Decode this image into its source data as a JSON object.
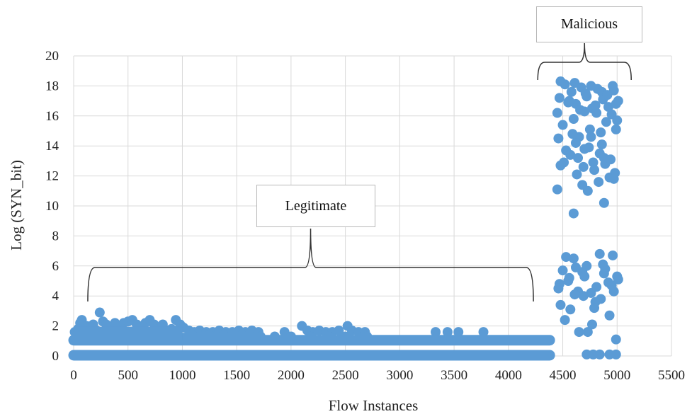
{
  "chart_data": {
    "type": "scatter",
    "title": "",
    "xlabel": "Flow Instances",
    "ylabel": "Log (SYN_bit)",
    "xlim": [
      0,
      5500
    ],
    "ylim": [
      0,
      20
    ],
    "x_ticks": [
      0,
      500,
      1000,
      1500,
      2000,
      2500,
      3000,
      3500,
      4000,
      4500,
      5000,
      5500
    ],
    "y_ticks": [
      0,
      2,
      4,
      6,
      8,
      10,
      12,
      14,
      16,
      18,
      20
    ],
    "grid": true,
    "marker_color": "#5b9bd5",
    "annotations": [
      {
        "label": "Legitimate",
        "x_range": [
          130,
          4230
        ]
      },
      {
        "label": "Malicious",
        "x_range": [
          4270,
          5130
        ]
      }
    ],
    "series": [
      {
        "points": [
          [
            10,
            1.6
          ],
          [
            40,
            1.8
          ],
          [
            60,
            2.2
          ],
          [
            75,
            2.4
          ],
          [
            90,
            1.6
          ],
          [
            120,
            2.0
          ],
          [
            150,
            1.7
          ],
          [
            180,
            2.1
          ],
          [
            210,
            1.7
          ],
          [
            240,
            2.9
          ],
          [
            270,
            2.3
          ],
          [
            300,
            2.1
          ],
          [
            340,
            1.8
          ],
          [
            380,
            2.2
          ],
          [
            420,
            1.9
          ],
          [
            460,
            2.2
          ],
          [
            500,
            2.3
          ],
          [
            540,
            2.4
          ],
          [
            580,
            2.1
          ],
          [
            620,
            1.9
          ],
          [
            660,
            2.2
          ],
          [
            700,
            2.4
          ],
          [
            740,
            2.1
          ],
          [
            780,
            1.8
          ],
          [
            820,
            2.1
          ],
          [
            860,
            1.7
          ],
          [
            900,
            1.8
          ],
          [
            940,
            2.4
          ],
          [
            980,
            2.1
          ],
          [
            1010,
            1.9
          ],
          [
            1060,
            1.7
          ],
          [
            1110,
            1.6
          ],
          [
            1160,
            1.7
          ],
          [
            1220,
            1.6
          ],
          [
            1280,
            1.6
          ],
          [
            1340,
            1.7
          ],
          [
            1400,
            1.6
          ],
          [
            1460,
            1.6
          ],
          [
            1520,
            1.7
          ],
          [
            1580,
            1.6
          ],
          [
            1640,
            1.7
          ],
          [
            1700,
            1.6
          ],
          [
            1940,
            1.6
          ],
          [
            2100,
            2.0
          ],
          [
            2150,
            1.7
          ],
          [
            2200,
            1.6
          ],
          [
            2260,
            1.7
          ],
          [
            2320,
            1.6
          ],
          [
            2380,
            1.6
          ],
          [
            2440,
            1.7
          ],
          [
            2520,
            2.0
          ],
          [
            2560,
            1.7
          ],
          [
            2620,
            1.6
          ],
          [
            2680,
            1.6
          ],
          [
            3330,
            1.6
          ],
          [
            3440,
            1.6
          ],
          [
            3540,
            1.6
          ],
          [
            3770,
            1.6
          ],
          [
            30,
            1.4
          ],
          [
            110,
            1.5
          ],
          [
            200,
            1.4
          ],
          [
            320,
            1.5
          ],
          [
            450,
            1.4
          ],
          [
            560,
            1.5
          ],
          [
            690,
            1.4
          ],
          [
            810,
            1.5
          ],
          [
            960,
            1.4
          ],
          [
            1090,
            1.4
          ],
          [
            1250,
            1.4
          ],
          [
            1380,
            1.4
          ],
          [
            1550,
            1.4
          ],
          [
            1720,
            1.3
          ],
          [
            1850,
            1.3
          ],
          [
            2000,
            1.3
          ],
          [
            2180,
            1.3
          ],
          [
            2350,
            1.3
          ],
          [
            2500,
            1.3
          ],
          [
            2700,
            1.3
          ],
          [
            4470,
            17.2
          ],
          [
            4520,
            18.1
          ],
          [
            4580,
            17.6
          ],
          [
            4620,
            16.8
          ],
          [
            4670,
            17.9
          ],
          [
            4720,
            17.3
          ],
          [
            4770,
            16.5
          ],
          [
            4820,
            17.8
          ],
          [
            4870,
            17.1
          ],
          [
            4920,
            16.6
          ],
          [
            4970,
            17.7
          ],
          [
            5010,
            17.0
          ],
          [
            4450,
            16.2
          ],
          [
            4500,
            15.4
          ],
          [
            4550,
            16.9
          ],
          [
            4600,
            15.8
          ],
          [
            4650,
            14.6
          ],
          [
            4700,
            16.3
          ],
          [
            4750,
            15.1
          ],
          [
            4800,
            16.7
          ],
          [
            4850,
            14.9
          ],
          [
            4900,
            15.6
          ],
          [
            4950,
            16.1
          ],
          [
            5000,
            15.7
          ],
          [
            4460,
            14.5
          ],
          [
            4530,
            13.7
          ],
          [
            4590,
            14.8
          ],
          [
            4640,
            13.2
          ],
          [
            4690,
            12.6
          ],
          [
            4740,
            13.9
          ],
          [
            4790,
            12.4
          ],
          [
            4840,
            13.5
          ],
          [
            4890,
            12.8
          ],
          [
            4940,
            13.1
          ],
          [
            4980,
            12.2
          ],
          [
            4480,
            18.3
          ],
          [
            4560,
            17.0
          ],
          [
            4610,
            18.2
          ],
          [
            4660,
            16.4
          ],
          [
            4710,
            17.5
          ],
          [
            4760,
            18.0
          ],
          [
            4810,
            16.2
          ],
          [
            4860,
            17.6
          ],
          [
            4910,
            17.4
          ],
          [
            4960,
            18.0
          ],
          [
            4990,
            16.8
          ],
          [
            4510,
            12.9
          ],
          [
            4570,
            13.4
          ],
          [
            4630,
            12.1
          ],
          [
            4680,
            11.4
          ],
          [
            4730,
            11.0
          ],
          [
            4780,
            12.9
          ],
          [
            4830,
            11.6
          ],
          [
            4880,
            13.2
          ],
          [
            4930,
            11.9
          ],
          [
            4970,
            11.8
          ],
          [
            4620,
            14.2
          ],
          [
            4700,
            13.8
          ],
          [
            4860,
            14.1
          ],
          [
            4760,
            14.6
          ],
          [
            4450,
            11.1
          ],
          [
            4480,
            12.7
          ],
          [
            4600,
            9.5
          ],
          [
            4880,
            10.2
          ],
          [
            4990,
            15.1
          ],
          [
            4470,
            4.8
          ],
          [
            4500,
            5.7
          ],
          [
            4530,
            6.6
          ],
          [
            4560,
            5.2
          ],
          [
            4600,
            6.5
          ],
          [
            4640,
            4.3
          ],
          [
            4680,
            5.6
          ],
          [
            4720,
            6.0
          ],
          [
            4760,
            4.2
          ],
          [
            4800,
            3.6
          ],
          [
            4840,
            6.8
          ],
          [
            4880,
            5.5
          ],
          [
            4920,
            4.9
          ],
          [
            4960,
            6.7
          ],
          [
            5000,
            5.3
          ],
          [
            4480,
            3.4
          ],
          [
            4520,
            2.4
          ],
          [
            4570,
            3.1
          ],
          [
            4610,
            4.1
          ],
          [
            4650,
            1.6
          ],
          [
            4690,
            4.0
          ],
          [
            4730,
            1.6
          ],
          [
            4770,
            2.1
          ],
          [
            4810,
            4.6
          ],
          [
            4850,
            3.8
          ],
          [
            4890,
            5.8
          ],
          [
            4930,
            2.7
          ],
          [
            4970,
            4.3
          ],
          [
            4460,
            4.5
          ],
          [
            4550,
            5.0
          ],
          [
            4620,
            5.9
          ],
          [
            4700,
            5.3
          ],
          [
            4790,
            3.2
          ],
          [
            4870,
            6.1
          ],
          [
            4950,
            4.7
          ],
          [
            5010,
            5.1
          ],
          [
            4990,
            1.1
          ],
          [
            4720,
            0.1
          ],
          [
            4780,
            0.1
          ],
          [
            4840,
            0.1
          ],
          [
            4930,
            0.1
          ],
          [
            4990,
            0.1
          ]
        ]
      }
    ]
  }
}
